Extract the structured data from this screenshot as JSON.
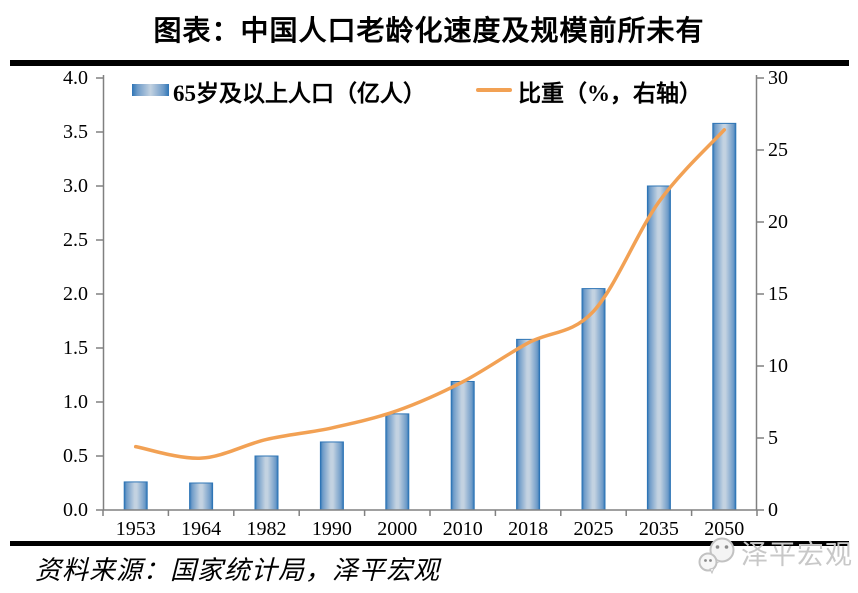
{
  "header": {
    "title": "图表：中国人口老龄化速度及规模前所未有"
  },
  "legend": {
    "bar_label": "65岁及以上人口（亿人）",
    "line_label": "比重（%，右轴）"
  },
  "chart_data": {
    "type": "bar",
    "title": "中国人口老龄化速度及规模前所未有",
    "categories": [
      "1953",
      "1964",
      "1982",
      "1990",
      "2000",
      "2010",
      "2018",
      "2025",
      "2035",
      "2050"
    ],
    "series": [
      {
        "name": "65岁及以上人口（亿人）",
        "type": "bar",
        "axis": "left",
        "values": [
          0.26,
          0.25,
          0.5,
          0.63,
          0.89,
          1.19,
          1.58,
          2.05,
          3.0,
          3.58
        ]
      },
      {
        "name": "比重（%，右轴）",
        "type": "line",
        "axis": "right",
        "values": [
          4.4,
          3.6,
          4.9,
          5.7,
          6.9,
          8.9,
          11.6,
          13.8,
          21.4,
          26.4
        ]
      }
    ],
    "left_axis": {
      "min": 0,
      "max": 4,
      "ticks": [
        "0.0",
        "0.5",
        "1.0",
        "1.5",
        "2.0",
        "2.5",
        "3.0",
        "3.5",
        "4.0"
      ]
    },
    "right_axis": {
      "min": 0,
      "max": 30,
      "ticks": [
        "0",
        "5",
        "10",
        "15",
        "20",
        "25",
        "30"
      ]
    },
    "grid": false,
    "legend_position": "top"
  },
  "footer": {
    "source": "资料来源：国家统计局，泽平宏观",
    "watermark": "泽平宏观"
  },
  "colors": {
    "bar_edge": "#2E75B6",
    "bar_mid": "#6E9BC8",
    "bar_light": "#C3D2E1",
    "line": "#F2A154",
    "axis": "#808080",
    "divider": "#000000",
    "text": "#000000",
    "watermark": "#C8C8C8"
  }
}
